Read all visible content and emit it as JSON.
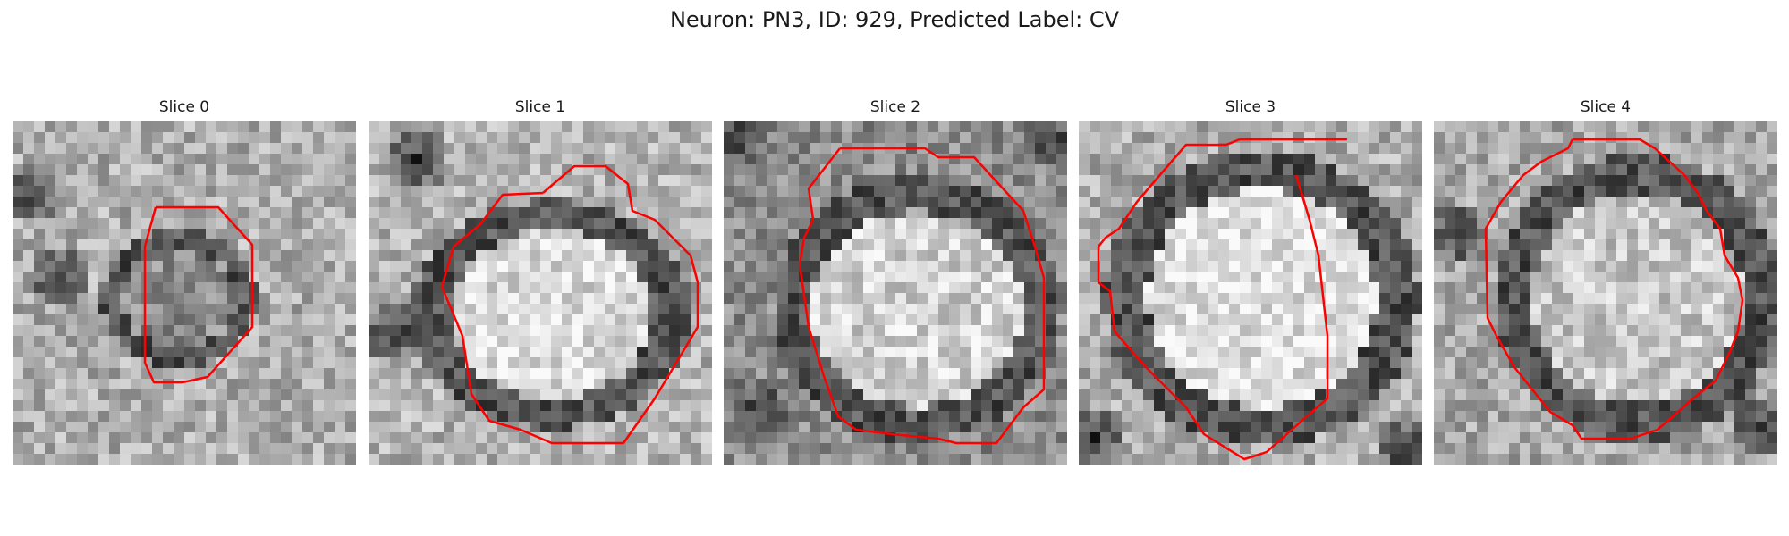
{
  "figure": {
    "title": "Neuron: PN3, ID: 929, Predicted Label: CV",
    "outline_color": "#ff0000"
  },
  "slices": [
    {
      "title": "Slice 0"
    },
    {
      "title": "Slice 1"
    },
    {
      "title": "Slice 2"
    },
    {
      "title": "Slice 3"
    },
    {
      "title": "Slice 4"
    }
  ]
}
